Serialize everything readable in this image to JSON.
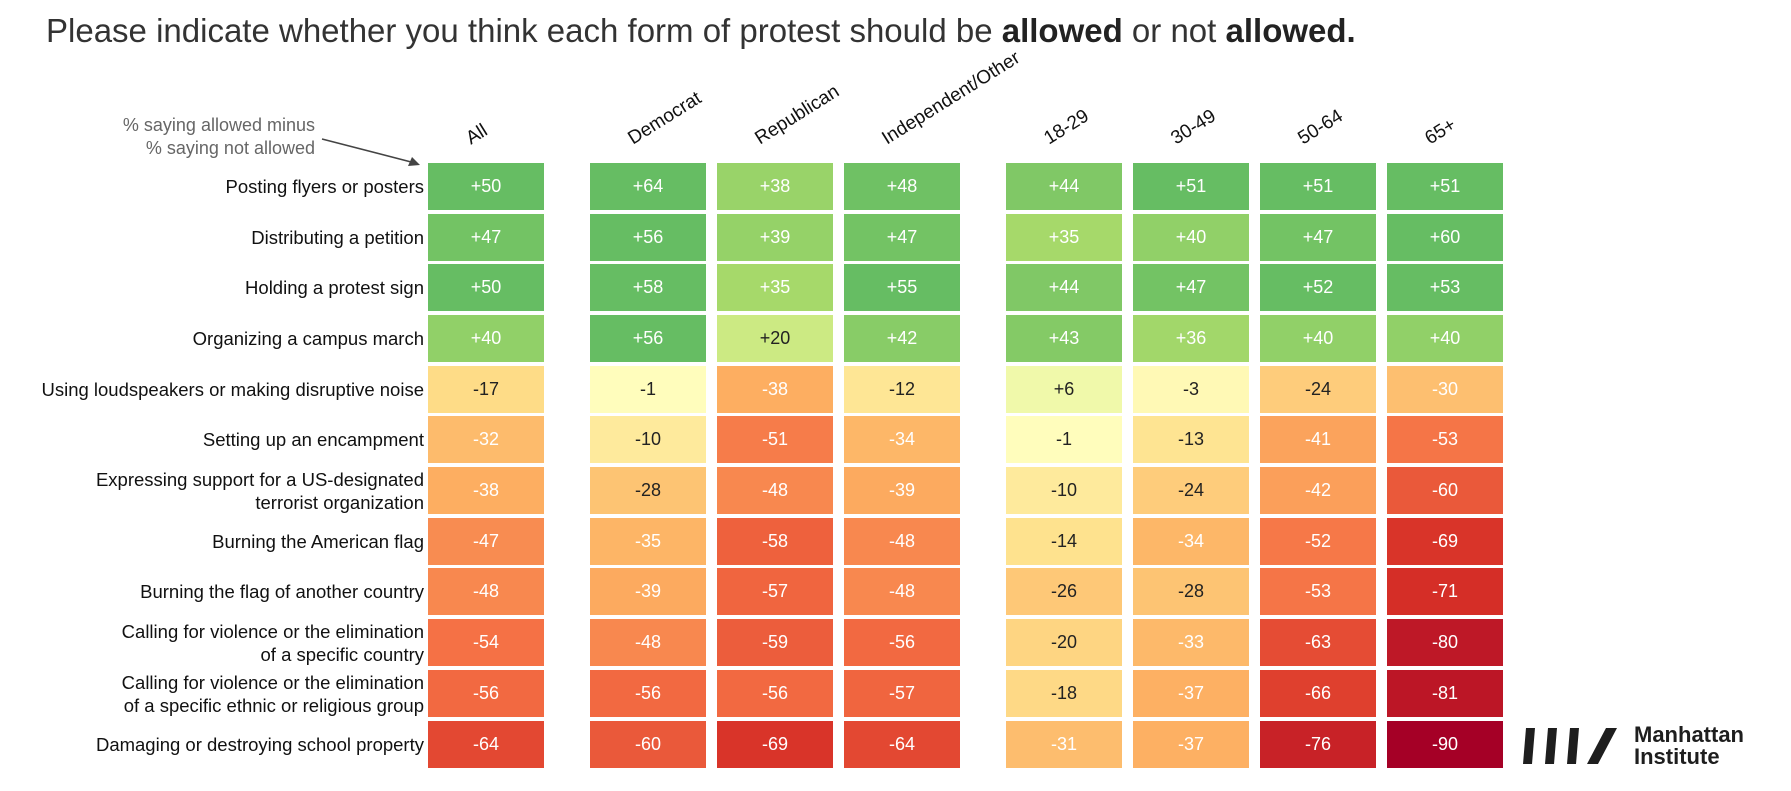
{
  "header": {
    "title_part1": "Please indicate whether you think each form of protest should be ",
    "title_bold1": "allowed",
    "title_part2": " or not ",
    "title_bold2": "allowed."
  },
  "annotation": {
    "line1": "% saying allowed minus",
    "line2": "% saying not allowed"
  },
  "logo": {
    "line1": "Manhattan",
    "line2": "Institute"
  },
  "colors": {
    "scale": [
      [
        -90,
        "#a50026"
      ],
      [
        -70,
        "#d73027"
      ],
      [
        -55,
        "#f46d43"
      ],
      [
        -38,
        "#fdae61"
      ],
      [
        -15,
        "#fee08b"
      ],
      [
        0,
        "#ffffbf"
      ],
      [
        15,
        "#d9ef8b"
      ],
      [
        35,
        "#a6d96a"
      ],
      [
        50,
        "#66bd63"
      ]
    ]
  },
  "chart_data": {
    "type": "heatmap",
    "title": "Please indicate whether you think each form of protest should be allowed or not allowed.",
    "columns": [
      "All",
      "Democrat",
      "Republican",
      "Independent/Other",
      "18-29",
      "30-49",
      "50-64",
      "65+"
    ],
    "rows": [
      "Posting flyers or posters",
      "Distributing a petition",
      "Holding a protest sign",
      "Organizing a campus march",
      "Using loudspeakers or making disruptive noise",
      "Setting up an encampment",
      "Expressing support for a US-designated terrorist organization",
      "Burning the American flag",
      "Burning the flag of another country",
      "Calling for violence or the elimination of a specific country",
      "Calling for violence or the elimination of a specific ethnic or religious group",
      "Damaging or destroying school property"
    ],
    "row_label_lines": [
      [
        "Posting flyers or posters"
      ],
      [
        "Distributing a petition"
      ],
      [
        "Holding a protest sign"
      ],
      [
        "Organizing a campus march"
      ],
      [
        "Using loudspeakers or making disruptive noise"
      ],
      [
        "Setting up an encampment"
      ],
      [
        "Expressing support for a US-designated",
        "terrorist organization"
      ],
      [
        "Burning the American flag"
      ],
      [
        "Burning the flag of another country"
      ],
      [
        "Calling for violence or the elimination",
        "of a specific country"
      ],
      [
        "Calling for violence or the elimination",
        "of a specific ethnic or religious group"
      ],
      [
        "Damaging or destroying school property"
      ]
    ],
    "values": [
      [
        50,
        64,
        38,
        48,
        44,
        51,
        51,
        51
      ],
      [
        47,
        56,
        39,
        47,
        35,
        40,
        47,
        60
      ],
      [
        50,
        58,
        35,
        55,
        44,
        47,
        52,
        53
      ],
      [
        40,
        56,
        20,
        42,
        43,
        36,
        40,
        40
      ],
      [
        -17,
        -1,
        -38,
        -12,
        6,
        -3,
        -24,
        -30
      ],
      [
        -32,
        -10,
        -51,
        -34,
        -1,
        -13,
        -41,
        -53
      ],
      [
        -38,
        -28,
        -48,
        -39,
        -10,
        -24,
        -42,
        -60
      ],
      [
        -47,
        -35,
        -58,
        -48,
        -14,
        -34,
        -52,
        -69
      ],
      [
        -48,
        -39,
        -57,
        -48,
        -26,
        -28,
        -53,
        -71
      ],
      [
        -54,
        -48,
        -59,
        -56,
        -20,
        -33,
        -63,
        -80
      ],
      [
        -56,
        -56,
        -56,
        -57,
        -18,
        -37,
        -66,
        -81
      ],
      [
        -64,
        -60,
        -69,
        -64,
        -31,
        -37,
        -76,
        -90
      ]
    ],
    "value_labels": [
      [
        "+50",
        "+64",
        "+38",
        "+48",
        "+44",
        "+51",
        "+51",
        "+51"
      ],
      [
        "+47",
        "+56",
        "+39",
        "+47",
        "+35",
        "+40",
        "+47",
        "+60"
      ],
      [
        "+50",
        "+58",
        "+35",
        "+55",
        "+44",
        "+47",
        "+52",
        "+53"
      ],
      [
        "+40",
        "+56",
        "+20",
        "+42",
        "+43",
        "+36",
        "+40",
        "+40"
      ],
      [
        "-17",
        "-1",
        "-38",
        "-12",
        "+6",
        "-3",
        "-24",
        "-30"
      ],
      [
        "-32",
        "-10",
        "-51",
        "-34",
        "-1",
        "-13",
        "-41",
        "-53"
      ],
      [
        "-38",
        "-28",
        "-48",
        "-39",
        "-10",
        "-24",
        "-42",
        "-60"
      ],
      [
        "-47",
        "-35",
        "-58",
        "-48",
        "-14",
        "-34",
        "-52",
        "-69"
      ],
      [
        "-48",
        "-39",
        "-57",
        "-48",
        "-26",
        "-28",
        "-53",
        "-71"
      ],
      [
        "-54",
        "-48",
        "-59",
        "-56",
        "-20",
        "-33",
        "-63",
        "-80"
      ],
      [
        "-56",
        "-56",
        "-56",
        "-57",
        "-18",
        "-37",
        "-66",
        "-81"
      ],
      [
        "-64",
        "-60",
        "-69",
        "-64",
        "-31",
        "-37",
        "-76",
        "-90"
      ]
    ]
  }
}
